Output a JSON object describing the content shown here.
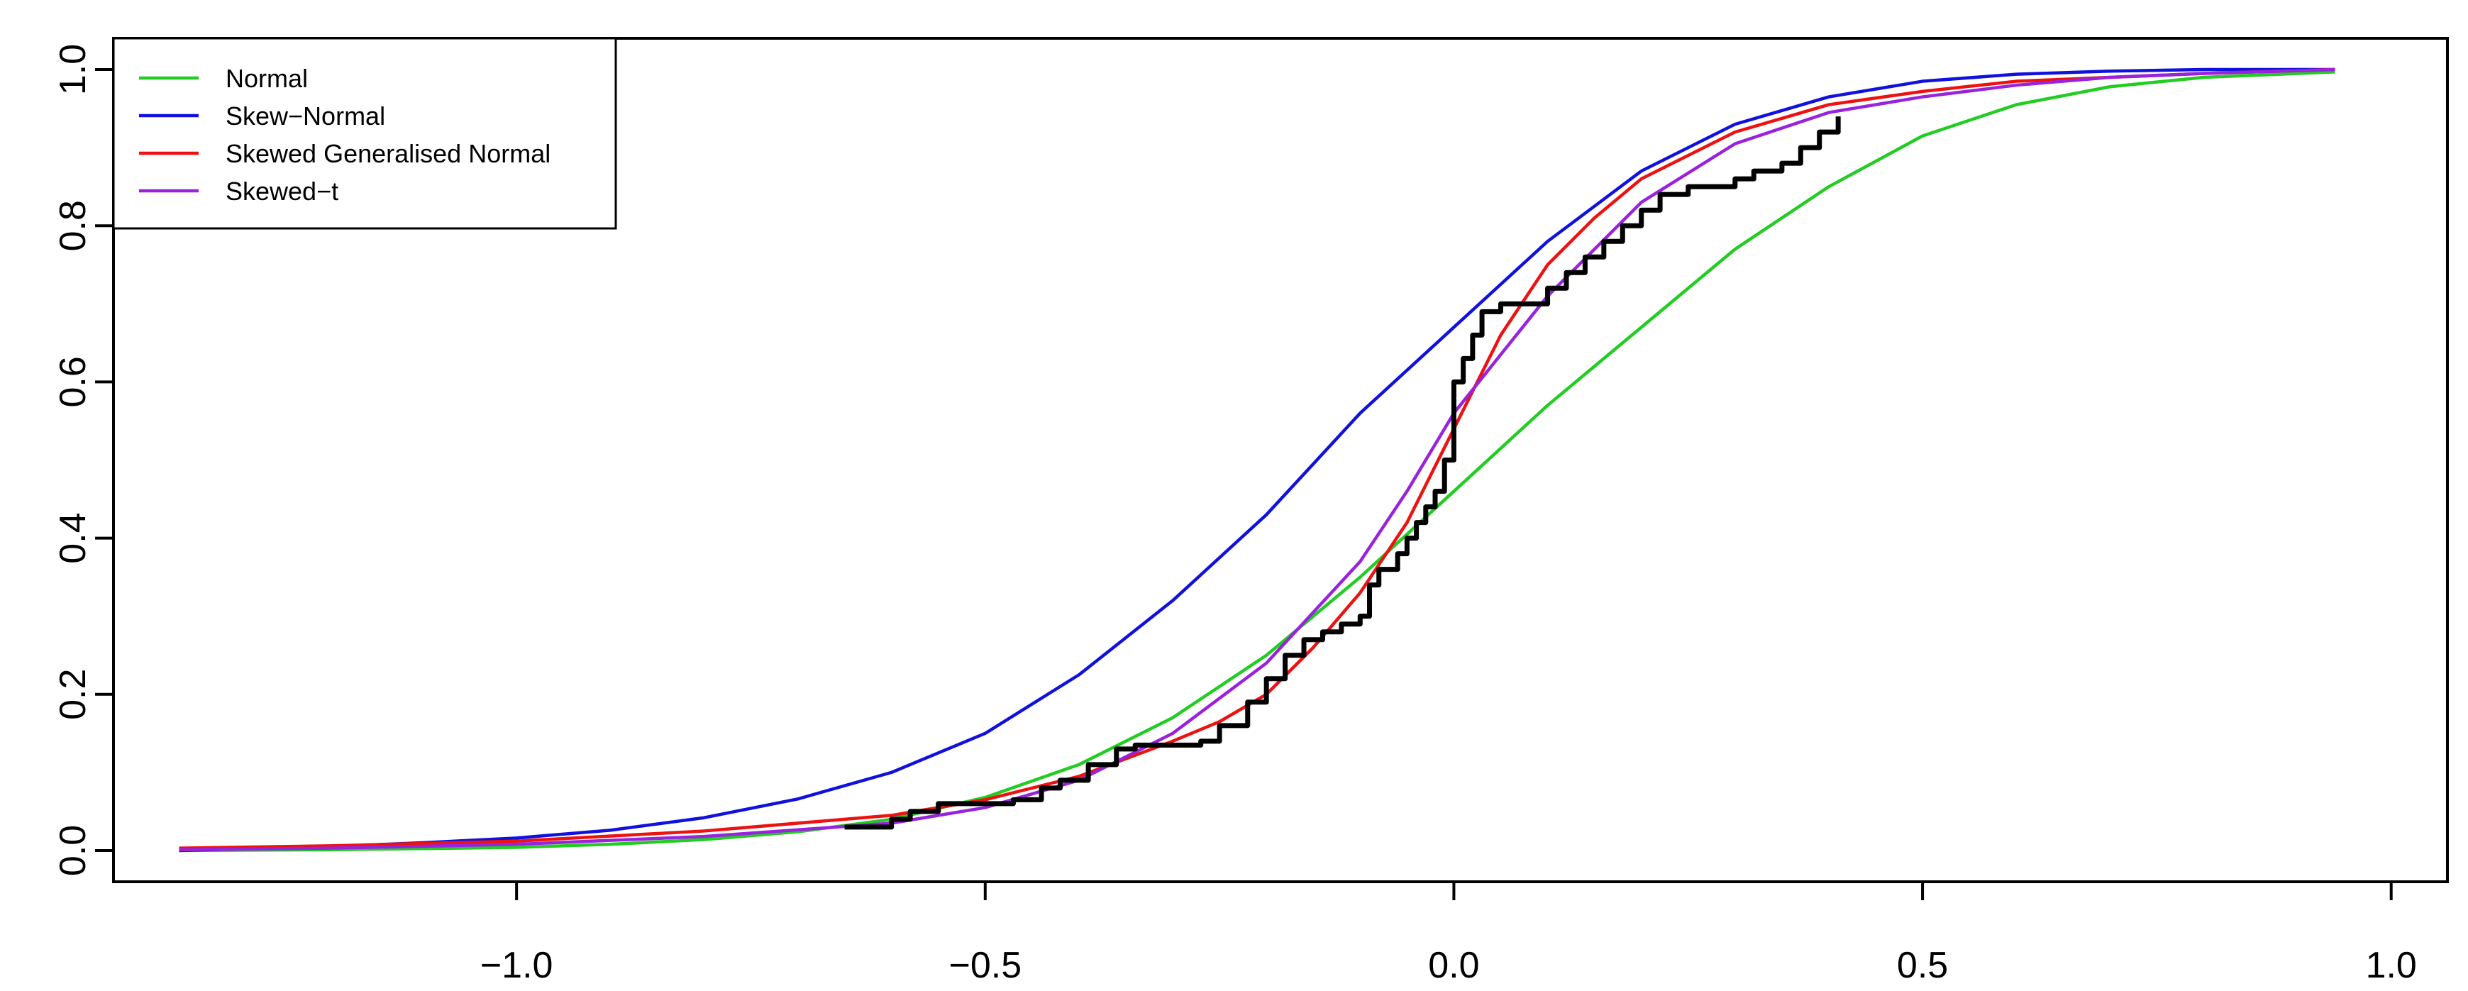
{
  "chart_data": {
    "type": "line",
    "title": "",
    "xlabel": "",
    "ylabel": "",
    "xlim": [
      -1.43,
      1.06
    ],
    "ylim": [
      -0.04,
      1.04
    ],
    "x_ticks": [
      -1.0,
      -0.5,
      0.0,
      0.5,
      1.0
    ],
    "x_tick_labels": [
      "−1.0",
      "−0.5",
      "0.0",
      "0.5",
      "1.0"
    ],
    "y_ticks": [
      0.0,
      0.2,
      0.4,
      0.6,
      0.8,
      1.0
    ],
    "y_tick_labels": [
      "0.0",
      "0.2",
      "0.4",
      "0.6",
      "0.8",
      "1.0"
    ],
    "grid": false,
    "legend_position": "top-left",
    "series": [
      {
        "name": "Normal",
        "color": "#22cc22",
        "x": [
          -1.36,
          -1.2,
          -1.0,
          -0.9,
          -0.8,
          -0.7,
          -0.6,
          -0.5,
          -0.4,
          -0.3,
          -0.2,
          -0.1,
          0.0,
          0.1,
          0.2,
          0.3,
          0.4,
          0.5,
          0.6,
          0.7,
          0.8,
          0.94
        ],
        "y": [
          0.0,
          0.001,
          0.004,
          0.008,
          0.014,
          0.024,
          0.04,
          0.068,
          0.11,
          0.17,
          0.25,
          0.35,
          0.46,
          0.57,
          0.67,
          0.77,
          0.85,
          0.915,
          0.955,
          0.978,
          0.99,
          0.997
        ]
      },
      {
        "name": "Skew−Normal",
        "color": "#1111dd",
        "x": [
          -1.36,
          -1.2,
          -1.1,
          -1.0,
          -0.9,
          -0.8,
          -0.7,
          -0.6,
          -0.5,
          -0.4,
          -0.3,
          -0.2,
          -0.1,
          0.0,
          0.1,
          0.2,
          0.3,
          0.4,
          0.5,
          0.6,
          0.7,
          0.8,
          0.94
        ],
        "y": [
          0.0,
          0.005,
          0.01,
          0.016,
          0.026,
          0.042,
          0.066,
          0.1,
          0.15,
          0.225,
          0.32,
          0.43,
          0.56,
          0.67,
          0.78,
          0.87,
          0.93,
          0.965,
          0.985,
          0.994,
          0.998,
          1.0,
          1.0
        ]
      },
      {
        "name": "Skewed Generalised Normal",
        "color": "#ee1111",
        "x": [
          -1.36,
          -1.2,
          -1.0,
          -0.8,
          -0.6,
          -0.5,
          -0.4,
          -0.3,
          -0.25,
          -0.2,
          -0.15,
          -0.1,
          -0.05,
          0.0,
          0.05,
          0.1,
          0.15,
          0.2,
          0.3,
          0.4,
          0.5,
          0.6,
          0.7,
          0.8,
          0.94
        ],
        "y": [
          0.003,
          0.006,
          0.012,
          0.025,
          0.045,
          0.065,
          0.095,
          0.14,
          0.165,
          0.2,
          0.26,
          0.33,
          0.42,
          0.54,
          0.66,
          0.75,
          0.81,
          0.86,
          0.92,
          0.955,
          0.972,
          0.985,
          0.99,
          0.995,
          1.0
        ]
      },
      {
        "name": "Skewed−t",
        "color": "#9922dd",
        "x": [
          -1.36,
          -1.2,
          -1.0,
          -0.8,
          -0.6,
          -0.5,
          -0.4,
          -0.3,
          -0.2,
          -0.1,
          -0.05,
          0.0,
          0.1,
          0.2,
          0.3,
          0.4,
          0.5,
          0.6,
          0.7,
          0.8,
          0.94
        ],
        "y": [
          0.001,
          0.003,
          0.008,
          0.018,
          0.035,
          0.055,
          0.09,
          0.15,
          0.24,
          0.37,
          0.46,
          0.56,
          0.71,
          0.83,
          0.905,
          0.945,
          0.965,
          0.98,
          0.99,
          0.995,
          1.0
        ]
      },
      {
        "name": "",
        "color": "#000000",
        "step": true,
        "x": [
          -0.65,
          -0.6,
          -0.58,
          -0.55,
          -0.47,
          -0.44,
          -0.42,
          -0.39,
          -0.36,
          -0.34,
          -0.3,
          -0.27,
          -0.25,
          -0.22,
          -0.2,
          -0.18,
          -0.16,
          -0.14,
          -0.12,
          -0.1,
          -0.09,
          -0.08,
          -0.06,
          -0.05,
          -0.04,
          -0.03,
          -0.02,
          -0.01,
          0.0,
          0.01,
          0.02,
          0.03,
          0.05,
          0.08,
          0.1,
          0.12,
          0.14,
          0.16,
          0.18,
          0.2,
          0.22,
          0.25,
          0.3,
          0.32,
          0.35,
          0.37,
          0.39,
          0.41
        ],
        "y": [
          0.03,
          0.04,
          0.05,
          0.06,
          0.065,
          0.08,
          0.09,
          0.11,
          0.13,
          0.135,
          0.135,
          0.14,
          0.16,
          0.19,
          0.22,
          0.25,
          0.27,
          0.28,
          0.29,
          0.3,
          0.34,
          0.36,
          0.38,
          0.4,
          0.42,
          0.44,
          0.46,
          0.5,
          0.6,
          0.63,
          0.66,
          0.69,
          0.7,
          0.7,
          0.72,
          0.74,
          0.76,
          0.78,
          0.8,
          0.82,
          0.84,
          0.85,
          0.86,
          0.87,
          0.88,
          0.9,
          0.92,
          0.94
        ]
      }
    ]
  }
}
